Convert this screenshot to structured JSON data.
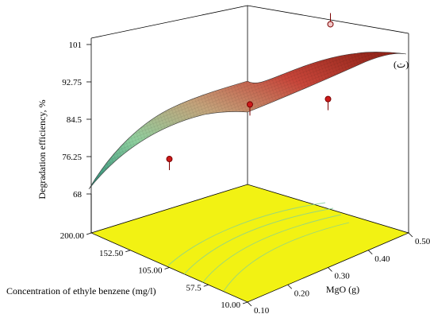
{
  "chart_data": {
    "type": "surface3d",
    "panel_label": "(ت)",
    "zlabel": "Degradation efficiency, %",
    "xlabel": "MgO (g)",
    "ylabel": "Concentration of ethyle benzene (mg/l)",
    "z_ticks": [
      "68",
      "76.25",
      "84.5",
      "92.75",
      "101"
    ],
    "x_ticks": [
      "0.10",
      "0.20",
      "0.30",
      "0.40",
      "0.50"
    ],
    "y_ticks": [
      "10.00",
      "57.5",
      "105.00",
      "152.50",
      "200.00"
    ],
    "zlim": [
      68,
      101
    ],
    "xlim": [
      0.1,
      0.5
    ],
    "ylim": [
      10,
      200
    ],
    "floor_color": "#f2f213",
    "surface_colors": [
      "#2a8c7a",
      "#8fcf9e",
      "#c4a27a",
      "#c8463a",
      "#8a1f14"
    ],
    "surface_corners": [
      {
        "x": 0.1,
        "y": 200,
        "z": 68.5
      },
      {
        "x": 0.1,
        "y": 10,
        "z": 89.0
      },
      {
        "x": 0.5,
        "y": 10,
        "z": 101.0
      },
      {
        "x": 0.5,
        "y": 200,
        "z": 101.0
      }
    ],
    "design_points": [
      {
        "x": 0.3,
        "y": 105,
        "z": 90.5,
        "above": true
      },
      {
        "x": 0.1,
        "y": 105,
        "z": 87.0,
        "above": true
      },
      {
        "x": 0.3,
        "y": 10,
        "z": 97.5,
        "above": true
      },
      {
        "x": 0.5,
        "y": 105,
        "z": 98.5,
        "above": false
      }
    ]
  }
}
